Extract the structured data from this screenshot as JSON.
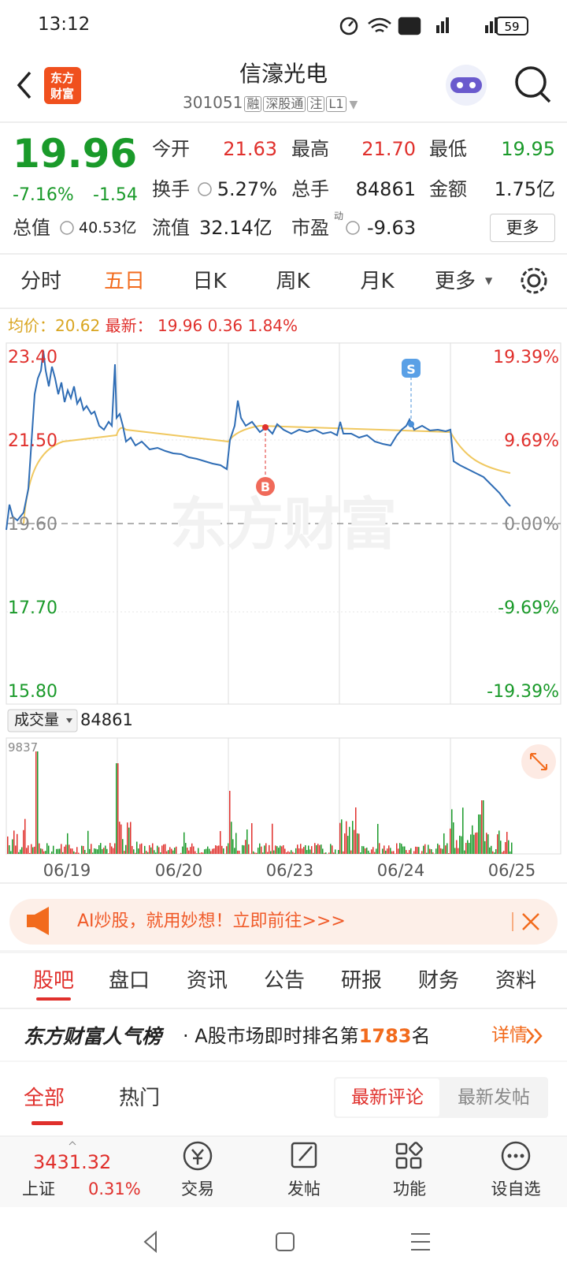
{
  "status_bar": {
    "time": "13:12",
    "battery": "59"
  },
  "header": {
    "logo": [
      "东方",
      "财富"
    ],
    "title": "信濠光电",
    "code": "301051",
    "tags": [
      "融",
      "深股通",
      "注",
      "L1"
    ]
  },
  "quote": {
    "price": "19.96",
    "change_pct": "-7.16%",
    "change": "-1.54",
    "total_value_label": "总值",
    "total_value": "40.53亿",
    "fields": [
      {
        "label": "今开",
        "value": "21.63"
      },
      {
        "label": "最高",
        "value": "21.70"
      },
      {
        "label": "最低",
        "value": "19.95"
      },
      {
        "label": "换手",
        "value": "5.27%"
      },
      {
        "label": "总手",
        "value": "84861"
      },
      {
        "label": "金额",
        "value": "1.75亿"
      },
      {
        "label": "流值",
        "value": "32.14亿"
      },
      {
        "label": "市盈",
        "value": "-9.63",
        "superscript": "动"
      }
    ],
    "more_button": "更多"
  },
  "chart_tabs": {
    "items": [
      "分时",
      "五日",
      "日K",
      "周K",
      "月K",
      "更多"
    ]
  },
  "chart_info": {
    "avg_label": "均价：",
    "avg": "20.62",
    "latest_label": "最新：",
    "latest": "19.96",
    "change": "0.36",
    "change_pct": "1.84%"
  },
  "price_chart": {
    "left_labels": [
      "23.40",
      "21.50",
      "19.60",
      "17.70",
      "15.80"
    ],
    "right_labels": [
      "19.39%",
      "9.69%",
      "0.00%",
      "-9.69%",
      "-19.39%"
    ],
    "markers": [
      "B",
      "S"
    ],
    "watermark": "东方财富"
  },
  "volume": {
    "selector": "成交量",
    "total": "84861",
    "max_label": "9837",
    "dates": [
      "06/19",
      "06/20",
      "06/23",
      "06/24",
      "06/25"
    ]
  },
  "banner": {
    "text": "AI炒股，就用妙想！立即前往>>>"
  },
  "section_tabs": {
    "items": [
      "股吧",
      "盘口",
      "资讯",
      "公告",
      "研报",
      "财务",
      "资料"
    ]
  },
  "ranking": {
    "brand": "东方财富人气榜",
    "text": "· A股市场即时排名第",
    "rank": "1783",
    "suffix": "名",
    "link": "详情"
  },
  "feed_tabs": {
    "items": [
      "全部",
      "热门"
    ],
    "sort": [
      "最新评论",
      "最新发帖"
    ]
  },
  "bottom_nav": {
    "index_value": "3431.32",
    "index_name": "上证",
    "index_change": "0.31%",
    "items": [
      "交易",
      "发帖",
      "功能",
      "设自选"
    ]
  }
}
